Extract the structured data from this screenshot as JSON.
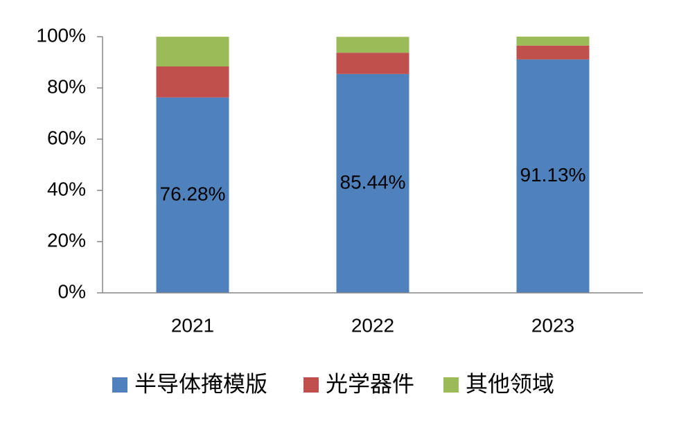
{
  "chart_data": {
    "type": "stacked_bar",
    "categories": [
      "2021",
      "2022",
      "2023"
    ],
    "series": [
      {
        "name": "半导体掩模版",
        "color": "#4f81bd",
        "values": [
          76.28,
          85.44,
          91.13
        ],
        "value_labels": [
          "76.28%",
          "85.44%",
          "91.13%"
        ]
      },
      {
        "name": "光学器件",
        "color": "#c0504d",
        "values": [
          12.1,
          8.3,
          5.4
        ]
      },
      {
        "name": "其他领域",
        "color": "#9bbb59",
        "values": [
          11.6,
          6.2,
          3.5
        ]
      }
    ],
    "ylim": [
      0,
      100
    ],
    "yticks": [
      {
        "value": 0,
        "label": "0%"
      },
      {
        "value": 20,
        "label": "20%"
      },
      {
        "value": 40,
        "label": "40%"
      },
      {
        "value": 60,
        "label": "60%"
      },
      {
        "value": 80,
        "label": "80%"
      },
      {
        "value": 100,
        "label": "100%"
      }
    ],
    "legend": "bottom"
  }
}
